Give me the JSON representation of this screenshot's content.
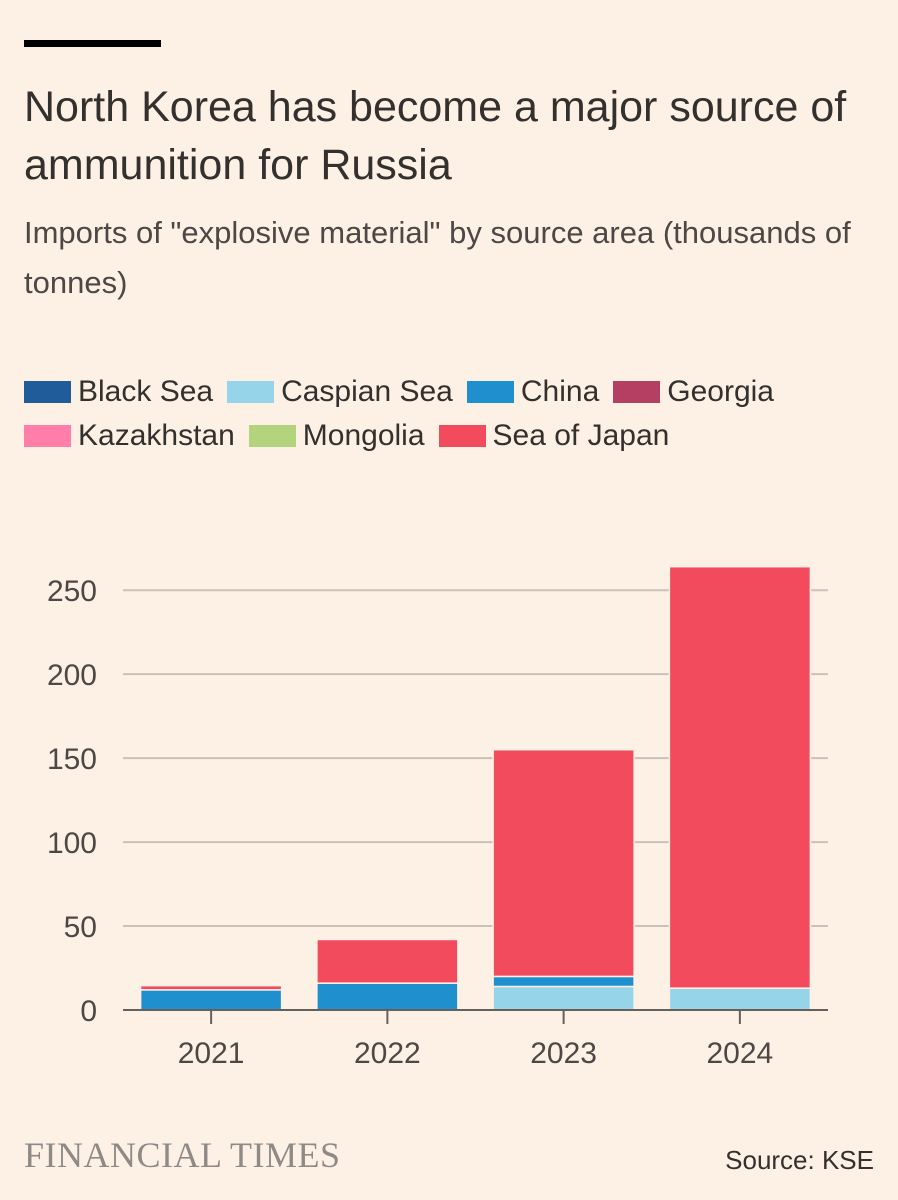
{
  "title": "North Korea has become a major source of ammunition for Russia",
  "subtitle": "Imports of \"explosive material\" by source area (thousands of tonnes)",
  "footer": {
    "publisher": "FINANCIAL TIMES",
    "source": "Source: KSE"
  },
  "legend": [
    {
      "label": "Black Sea",
      "color": "#1f5c99"
    },
    {
      "label": "Caspian Sea",
      "color": "#96d4ea"
    },
    {
      "label": "China",
      "color": "#208fce"
    },
    {
      "label": "Georgia",
      "color": "#b33f62"
    },
    {
      "label": "Kazakhstan",
      "color": "#ff7faa"
    },
    {
      "label": "Mongolia",
      "color": "#b3d47c"
    },
    {
      "label": "Sea of Japan",
      "color": "#f24b5d"
    }
  ],
  "chart_data": {
    "type": "bar",
    "stacked": true,
    "categories": [
      "2021",
      "2022",
      "2023",
      "2024"
    ],
    "ylim": [
      0,
      265
    ],
    "yticks": [
      0,
      50,
      100,
      150,
      200,
      250
    ],
    "grid": true,
    "legend_position": "top",
    "series": [
      {
        "name": "Black Sea",
        "color": "#1f5c99",
        "values": [
          0,
          0,
          0,
          0
        ]
      },
      {
        "name": "Caspian Sea",
        "color": "#96d4ea",
        "values": [
          0,
          0,
          14,
          13
        ]
      },
      {
        "name": "China",
        "color": "#208fce",
        "values": [
          12,
          16,
          6,
          0
        ]
      },
      {
        "name": "Georgia",
        "color": "#b33f62",
        "values": [
          0,
          0,
          0,
          0
        ]
      },
      {
        "name": "Kazakhstan",
        "color": "#ff7faa",
        "values": [
          0,
          0,
          0,
          0
        ]
      },
      {
        "name": "Mongolia",
        "color": "#b3d47c",
        "values": [
          0,
          0,
          0,
          0
        ]
      },
      {
        "name": "Sea of Japan",
        "color": "#f24b5d",
        "values": [
          2.5,
          26,
          135,
          251
        ]
      }
    ]
  }
}
